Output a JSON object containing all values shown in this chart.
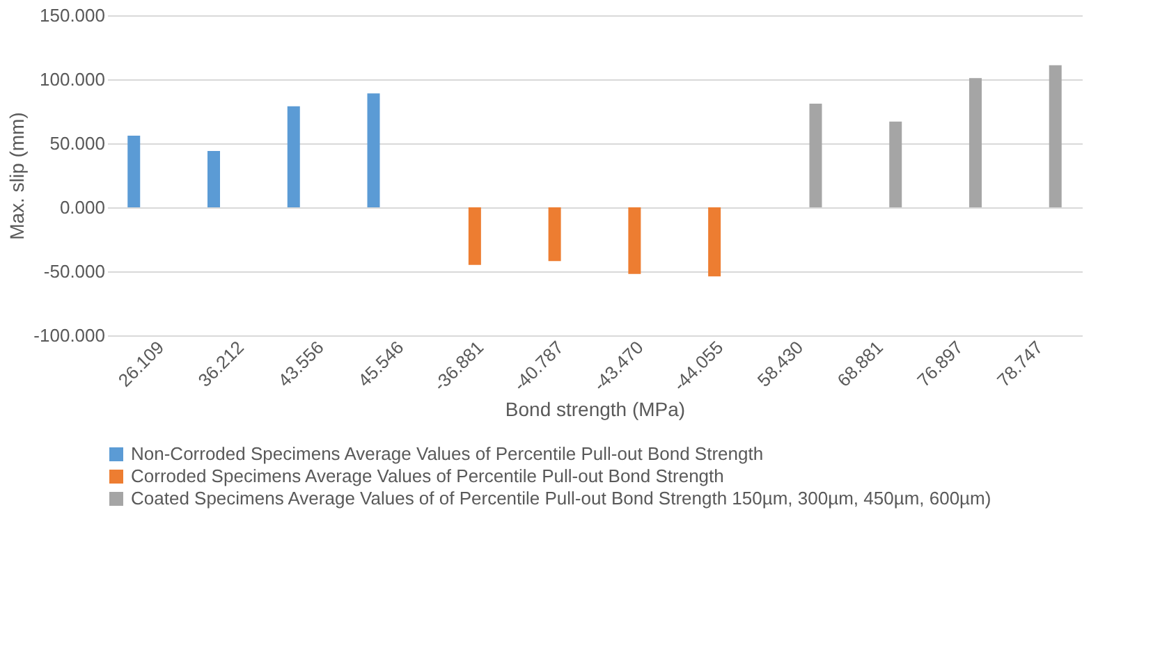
{
  "chart_data": {
    "type": "bar",
    "xlabel": "Bond strength (MPa)",
    "ylabel": "Max. slip (mm)",
    "categories": [
      "26.109",
      "36.212",
      "43.556",
      "45.546",
      "-36.881",
      "-40.787",
      "-43.470",
      "-44.055",
      "58.430",
      "68.881",
      "76.897",
      "78.747"
    ],
    "series": [
      {
        "name": "Non-Corroded Specimens Average Values of  Percentile Pull-out Bond Strength",
        "color": "#5b9bd5",
        "values": [
          56,
          44,
          79,
          89,
          null,
          null,
          null,
          null,
          null,
          null,
          null,
          null
        ]
      },
      {
        "name": "Corroded Specimens Average Values of  Percentile Pull-out Bond Strength",
        "color": "#ed7d31",
        "values": [
          null,
          null,
          null,
          null,
          -45,
          -42,
          -52,
          -54,
          null,
          null,
          null,
          null
        ]
      },
      {
        "name": "Coated Specimens Average Values of of  Percentile Pull-out Bond Strength 150µm, 300µm, 450µm, 600µm)",
        "color": "#a5a5a5",
        "values": [
          null,
          null,
          null,
          null,
          null,
          null,
          null,
          null,
          81,
          67,
          101,
          111
        ]
      }
    ],
    "ylim": [
      -100,
      150
    ],
    "yticks": [
      {
        "value": -100,
        "label": "-100.000"
      },
      {
        "value": -50,
        "label": "-50.000"
      },
      {
        "value": 0,
        "label": "0.000"
      },
      {
        "value": 50,
        "label": "50.000"
      },
      {
        "value": 100,
        "label": "100.000"
      },
      {
        "value": 150,
        "label": "150.000"
      }
    ],
    "grid": "y",
    "legend": "bottom"
  }
}
